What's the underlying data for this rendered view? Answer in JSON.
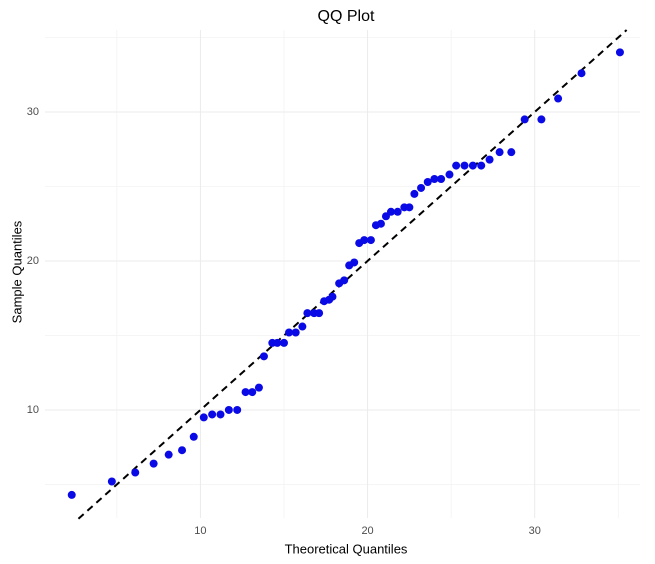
{
  "chart_data": {
    "type": "scatter",
    "title": "QQ Plot",
    "x_label": "Theoretical Quantiles",
    "y_label": "Sample Quantiles",
    "xlim": [
      0.7,
      36.3
    ],
    "ylim": [
      2.75,
      35.5
    ],
    "xticks": [
      10,
      20,
      30
    ],
    "yticks": [
      10,
      20,
      30
    ],
    "minor_xticks": [
      5,
      15,
      25,
      35
    ],
    "minor_yticks": [
      5,
      15,
      25,
      35
    ],
    "grid": true,
    "color": "#0a0ae6",
    "x": [
      2.3,
      4.7,
      6.1,
      7.2,
      8.1,
      8.9,
      9.6,
      10.2,
      10.7,
      11.2,
      11.7,
      12.2,
      12.7,
      13.1,
      13.5,
      13.8,
      14.3,
      14.6,
      15.0,
      15.3,
      15.7,
      16.1,
      16.4,
      16.8,
      17.1,
      17.4,
      17.7,
      17.9,
      18.3,
      18.6,
      18.9,
      19.2,
      19.5,
      19.8,
      20.2,
      20.5,
      20.8,
      21.1,
      21.4,
      21.8,
      22.2,
      22.5,
      22.8,
      23.2,
      23.6,
      24.0,
      24.4,
      24.9,
      25.3,
      25.8,
      26.3,
      26.8,
      27.3,
      27.9,
      28.6,
      29.4,
      30.4,
      31.4,
      32.8,
      35.1
    ],
    "y": [
      4.3,
      5.2,
      5.8,
      6.4,
      7.0,
      7.3,
      8.2,
      9.5,
      9.7,
      9.7,
      10.0,
      10.0,
      11.2,
      11.2,
      11.5,
      13.6,
      14.5,
      14.5,
      14.5,
      15.2,
      15.2,
      15.6,
      16.5,
      16.5,
      16.5,
      17.3,
      17.4,
      17.6,
      18.5,
      18.7,
      19.7,
      19.9,
      21.2,
      21.4,
      21.4,
      22.4,
      22.5,
      23.0,
      23.3,
      23.3,
      23.6,
      23.6,
      24.5,
      24.9,
      25.3,
      25.5,
      25.5,
      25.8,
      26.4,
      26.4,
      26.4,
      26.4,
      26.8,
      27.3,
      27.3,
      29.5,
      29.5,
      30.9,
      32.6,
      34.0
    ],
    "reference_line": {
      "x": [
        2.7,
        35.5
      ],
      "y": [
        2.7,
        35.5
      ],
      "color": "#000000"
    }
  }
}
